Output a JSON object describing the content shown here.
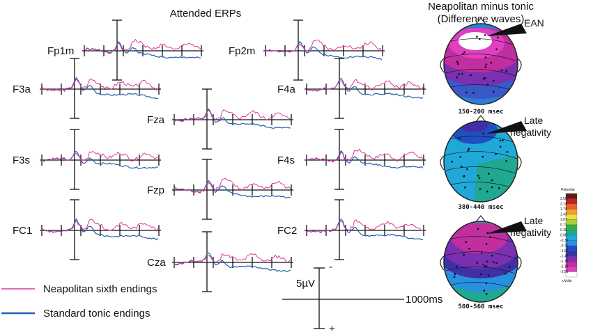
{
  "title": "Attended ERPs",
  "channels": [
    {
      "label": "Fp1m",
      "seed": 1
    },
    {
      "label": "Fp2m",
      "seed": 2
    },
    {
      "label": "F3a",
      "seed": 3
    },
    {
      "label": "F4a",
      "seed": 4
    },
    {
      "label": "Fza",
      "seed": 5
    },
    {
      "label": "F3s",
      "seed": 6
    },
    {
      "label": "F4s",
      "seed": 7
    },
    {
      "label": "Fzp",
      "seed": 8
    },
    {
      "label": "FC1",
      "seed": 9
    },
    {
      "label": "FC2",
      "seed": 10
    },
    {
      "label": "Cza",
      "seed": 11
    }
  ],
  "legend": [
    {
      "label": "Neapolitan sixth endings",
      "color": "#e0389a"
    },
    {
      "label": "Standard tonic endings",
      "color": "#1f5fb0"
    }
  ],
  "scale": {
    "amplitude": "5µV",
    "time": "1000ms",
    "minus": "-",
    "plus": "+"
  },
  "difference_title": {
    "line1": "Neapolitan minus tonic",
    "line2": "(Difference waves)"
  },
  "maps": [
    {
      "time": "150-200  msec",
      "annotation": [
        "EAN"
      ],
      "style": "ean"
    },
    {
      "time": "380-440  msec",
      "annotation": [
        "Late",
        "negativity"
      ],
      "style": "late1"
    },
    {
      "time": "500-560  msec",
      "annotation": [
        "Late",
        "negativity"
      ],
      "style": "late2"
    }
  ],
  "colorbar": {
    "title": "Potential",
    "unit": "uVolts",
    "ticks": [
      "2.50",
      "2.14",
      "1.79",
      "1.43",
      "1.07",
      "0.71",
      "0.36",
      "0.00",
      "-0.36",
      "-0.71",
      "-1.07",
      "-1.43",
      "-1.79",
      "-2.14",
      "-2.50"
    ],
    "colors": [
      "#5a1a1a",
      "#c21f1f",
      "#e8602a",
      "#f0a030",
      "#f0e040",
      "#a8d040",
      "#30b040",
      "#20a890",
      "#20a8d8",
      "#2890e0",
      "#2050c0",
      "#4030a8",
      "#7a30b0",
      "#c02ea0",
      "#e040c0",
      "#ffffff"
    ]
  }
}
